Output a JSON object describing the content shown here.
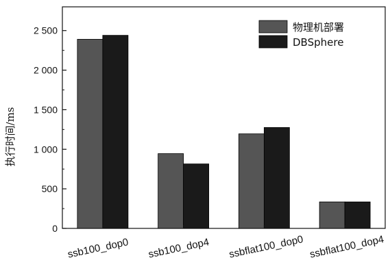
{
  "chart_data": {
    "type": "bar",
    "title": "",
    "xlabel": "",
    "ylabel": "执行时间/ms",
    "ylim": [
      0,
      2800
    ],
    "yticks": [
      0,
      500,
      1000,
      1500,
      2000,
      2500
    ],
    "ytick_labels": [
      "0",
      "500",
      "1 000",
      "1 500",
      "2 000",
      "2 500"
    ],
    "categories": [
      "ssb100_dop0",
      "ssb100_dop4",
      "ssbflat100_dop0",
      "ssbflat100_dop4"
    ],
    "series": [
      {
        "name": "物理机部署",
        "color": "#555555",
        "values": [
          2390,
          945,
          1195,
          335
        ]
      },
      {
        "name": "DBSphere",
        "color": "#1a1a1a",
        "values": [
          2440,
          815,
          1275,
          335
        ]
      }
    ],
    "legend_position": "top-right",
    "grid": false
  }
}
